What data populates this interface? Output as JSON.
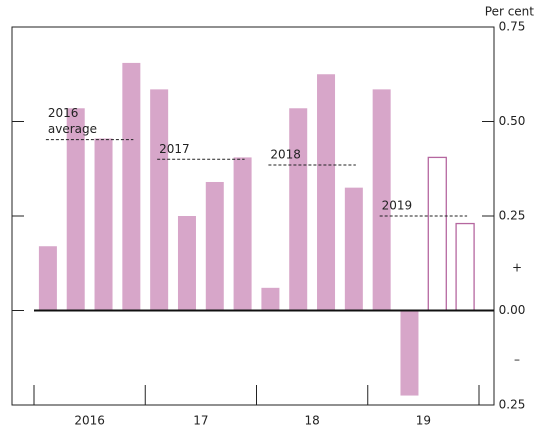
{
  "chart_data": {
    "type": "bar",
    "y_unit_label": "Per cent",
    "sign_labels": [
      "+",
      "–"
    ],
    "categories": [
      null,
      null,
      null,
      null,
      null,
      null,
      null,
      null,
      null,
      null,
      null,
      null,
      null,
      null,
      null,
      null
    ],
    "x_group_labels": [
      "2016",
      "17",
      "18",
      "19"
    ],
    "values": [
      0.17,
      0.535,
      0.455,
      0.655,
      0.585,
      0.25,
      0.34,
      0.405,
      0.06,
      0.535,
      0.625,
      0.325,
      0.585,
      -0.225,
      0.405,
      0.23
    ],
    "fill_styles": [
      "filled",
      "filled",
      "filled",
      "filled",
      "filled",
      "filled",
      "filled",
      "filled",
      "filled",
      "filled",
      "filled",
      "filled",
      "filled",
      "filled",
      "outline",
      "outline"
    ],
    "color": "#d7a6c9",
    "outline_color": "#b5679f",
    "averages": [
      {
        "label": [
          "2016",
          "average"
        ],
        "value": 0.452
      },
      {
        "label": [
          "2017"
        ],
        "value": 0.4
      },
      {
        "label": [
          "2018"
        ],
        "value": 0.385
      },
      {
        "label": [
          "2019"
        ],
        "value": 0.25
      }
    ],
    "ylim": [
      -0.25,
      0.75
    ],
    "yticks": [
      {
        "value": 0.75,
        "label": "0.75"
      },
      {
        "value": 0.5,
        "label": "0.50"
      },
      {
        "value": 0.25,
        "label": "0.25"
      },
      {
        "value": 0,
        "label": "0.00"
      },
      {
        "value": -0.25,
        "label": "0.25"
      }
    ]
  }
}
